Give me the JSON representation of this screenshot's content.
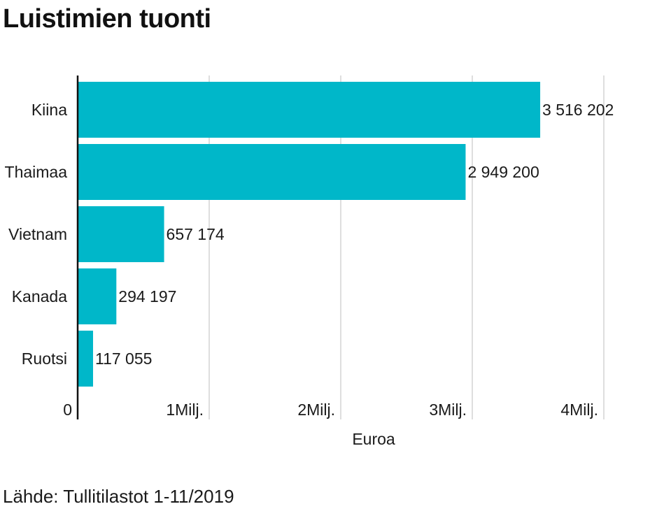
{
  "title": "Luistimien tuonti",
  "source": "Lähde: Tullitilastot 1-11/2019",
  "colors": {
    "bar": "#00b7c9",
    "grid": "#d4d4d4",
    "axis": "#111111"
  },
  "chart_data": {
    "type": "bar",
    "orientation": "horizontal",
    "title": "Luistimien tuonti",
    "xlabel": "Euroa",
    "ylabel": "",
    "categories": [
      "Kiina",
      "Thaimaa",
      "Vietnam",
      "Kanada",
      "Ruotsi"
    ],
    "values": [
      3516202,
      2949200,
      657174,
      294197,
      117055
    ],
    "value_labels": [
      "3 516 202",
      "2 949 200",
      "657 174",
      "294 197",
      "117 055"
    ],
    "xlim": [
      0,
      4000000
    ],
    "x_ticks": [
      0,
      1000000,
      2000000,
      3000000,
      4000000
    ],
    "x_tick_labels": [
      "0",
      "1Milj.",
      "2Milj.",
      "3Milj.",
      "4Milj."
    ],
    "grid": true,
    "legend": "none"
  }
}
